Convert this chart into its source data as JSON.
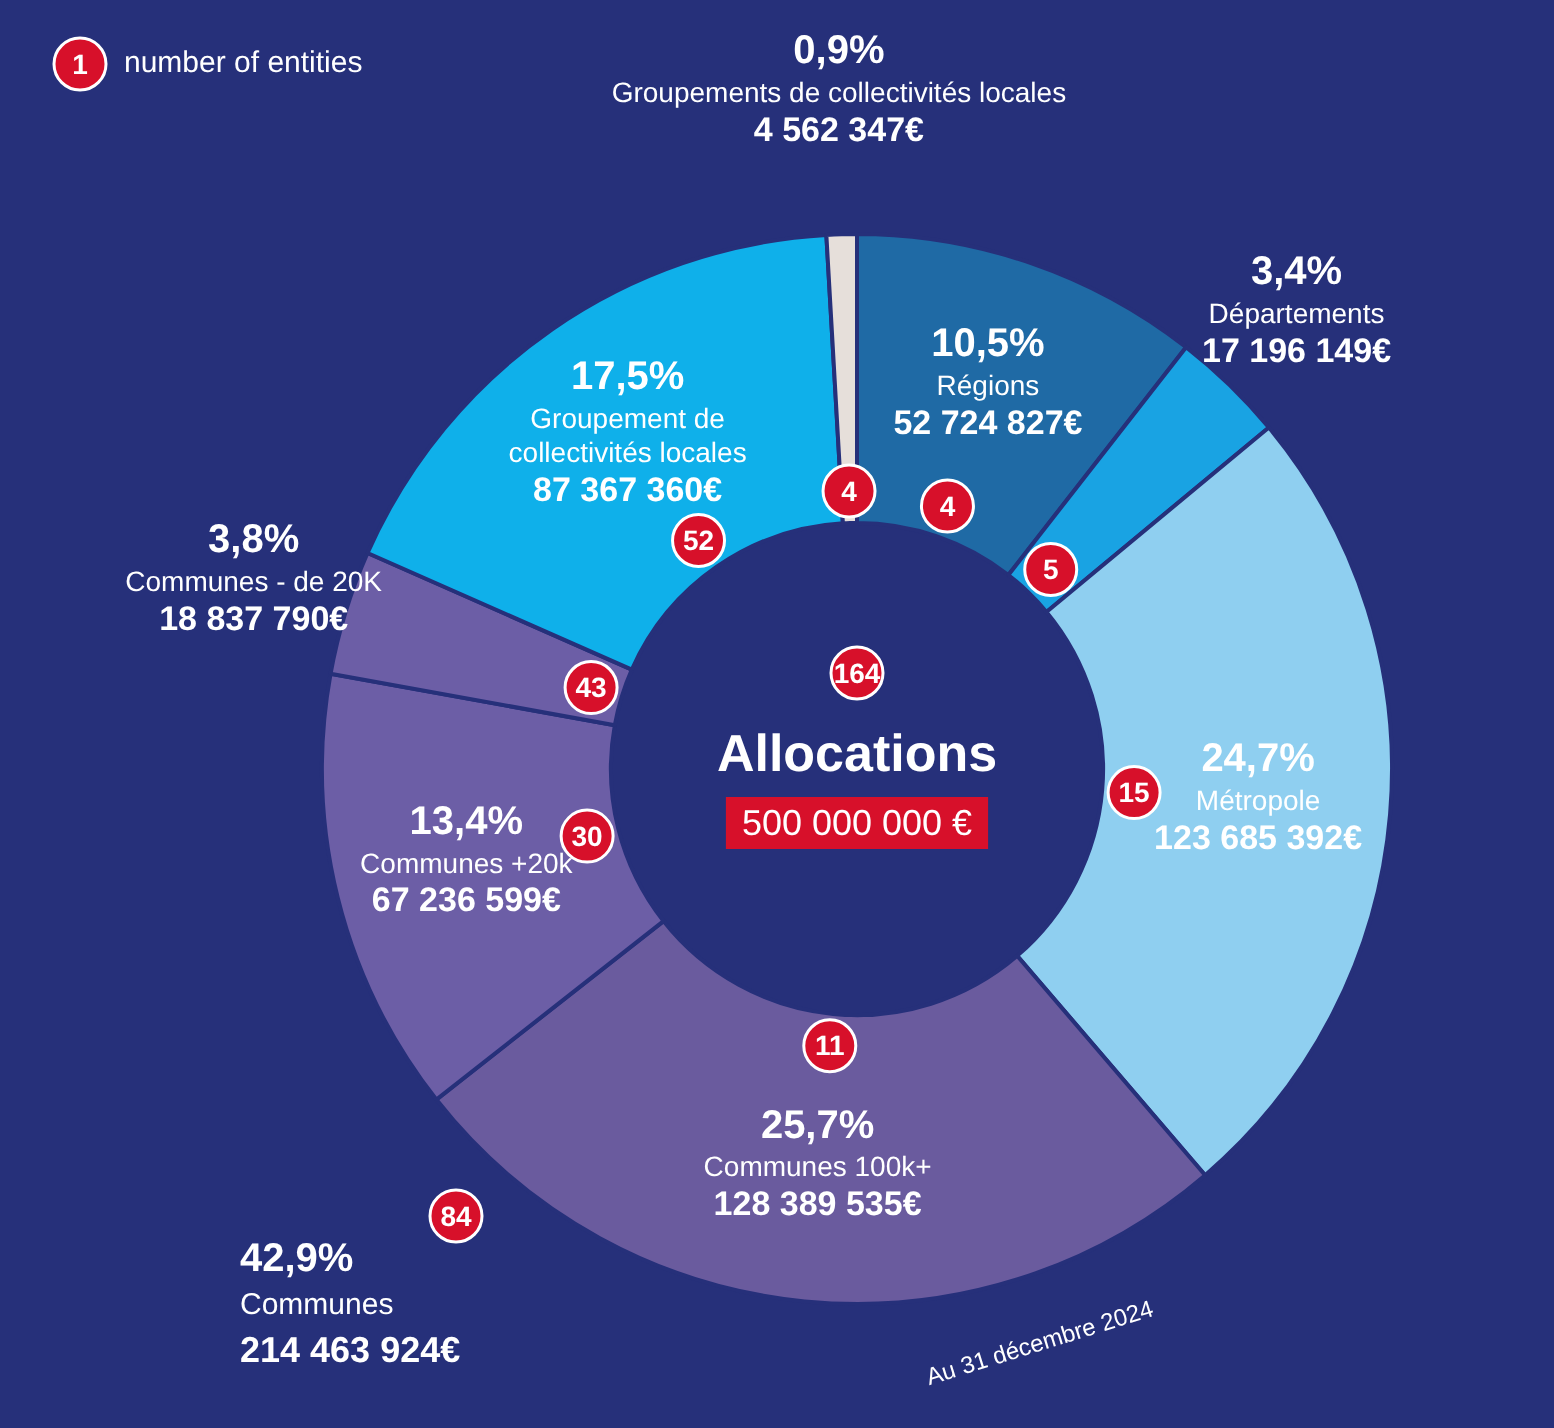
{
  "chart_data": {
    "type": "donut",
    "title": "Allocations",
    "subtitle": "500 000 000 €",
    "categories": [
      "Régions",
      "Départements",
      "Métropole",
      "Communes 100k+",
      "Communes +20k",
      "Communes - de 20K",
      "Groupement de collectivités locales",
      "Groupements de collectivités locales"
    ],
    "values": [
      52724827,
      17196149,
      123685392,
      128389535,
      67236599,
      18837790,
      87367360,
      4562347
    ],
    "colors": [
      "#1f6aa5",
      "#19a3e3",
      "#8fcff0",
      "#6a5b9e",
      "#6c5ea6",
      "#6c5ea6",
      "#0fb0ea",
      "#e6dfda"
    ],
    "value_labels": [
      "52 724 827€",
      "17 196 149€",
      "123 685 392€",
      "128 389 535€",
      "67 236 599€",
      "18 837 790€",
      "87 367 360€",
      "4 562 347€"
    ],
    "annotations": [
      "1",
      "number of entities",
      "164",
      "42,9%",
      "Communes",
      "214 463 924€",
      "84",
      "Au 31 décembre 2024",
      {
        "text": "10,5%",
        "x": "Régions"
      },
      {
        "text": "4",
        "x": "Régions"
      },
      {
        "text": "3,4%",
        "x": "Départements"
      },
      {
        "text": "5",
        "x": "Départements"
      },
      {
        "text": "24,7%",
        "x": "Métropole"
      },
      {
        "text": "15",
        "x": "Métropole"
      },
      {
        "text": "25,7%",
        "x": "Communes 100k+"
      },
      {
        "text": "11",
        "x": "Communes 100k+"
      },
      {
        "text": "13,4%",
        "x": "Communes +20k"
      },
      {
        "text": "30",
        "x": "Communes +20k"
      },
      {
        "text": "3,8%",
        "x": "Communes - de 20K"
      },
      {
        "text": "43",
        "x": "Communes - de 20K"
      },
      {
        "text": "17,5%",
        "x": "Groupement de collectivités locales"
      },
      {
        "text": "52",
        "x": "Groupement de collectivités locales"
      },
      {
        "text": "0,9%",
        "x": "Groupements de collectivités locales"
      },
      {
        "text": "4",
        "x": "Groupements de collectivités locales"
      }
    ],
    "legend": false
  }
}
